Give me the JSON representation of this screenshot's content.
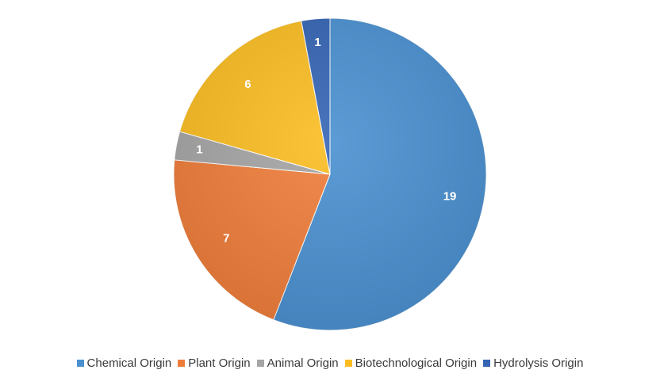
{
  "chart_data": {
    "type": "pie",
    "title": "",
    "categories": [
      "Chemical Origin",
      "Plant Origin",
      "Animal Origin",
      "Biotechnological Origin",
      "Hydrolysis Origin"
    ],
    "values": [
      19,
      7,
      1,
      6,
      1
    ],
    "colors": [
      "#4a90d0",
      "#ef7d3a",
      "#a5a5a5",
      "#fbbd22",
      "#3565b5"
    ],
    "data_labels": [
      "19",
      "7",
      "1",
      "6",
      "1"
    ],
    "start_angle": "12 o'clock",
    "direction": "clockwise",
    "legend_position": "bottom"
  }
}
